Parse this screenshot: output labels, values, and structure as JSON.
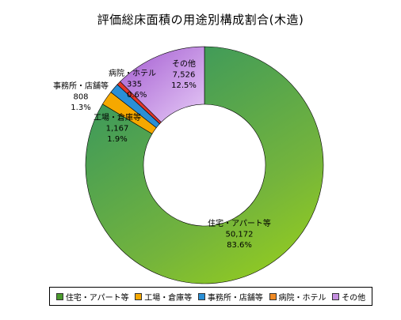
{
  "chart_data": {
    "type": "pie",
    "variant": "donut",
    "title": "評価総床面積の用途別構成割合(木造)",
    "categories": [
      "住宅・アパート等",
      "工場・倉庫等",
      "事務所・店舗等",
      "病院・ホテル",
      "その他"
    ],
    "values": [
      50172,
      1167,
      808,
      335,
      7526
    ],
    "percent_labels": [
      "83.6%",
      "1.9%",
      "1.3%",
      "0.6%",
      "12.5%"
    ],
    "value_labels": [
      "50,172",
      "1,167",
      "808",
      "335",
      "7,526"
    ],
    "colors": [
      "#4a9a2c",
      "#f5a800",
      "#2a8fd6",
      "#e2372a",
      "#c58fe0"
    ],
    "legend_position": "bottom"
  }
}
